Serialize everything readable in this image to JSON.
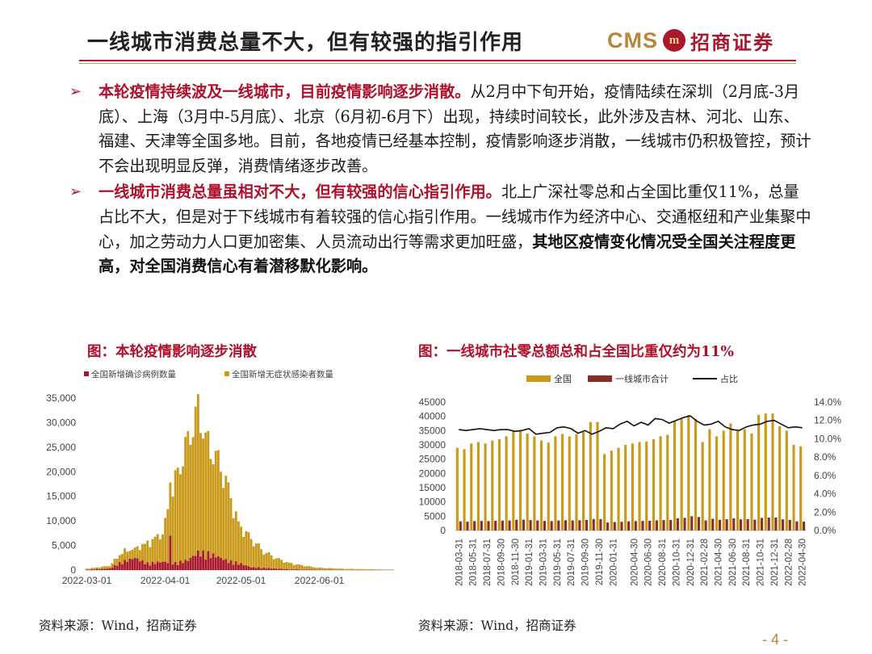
{
  "header": {
    "title": "一线城市消费总量不大，但有较强的指引作用",
    "logo_cms": "CMS",
    "logo_mark": "m",
    "logo_cn": "招商证券"
  },
  "bullets": [
    {
      "marker": "➢",
      "lead": "本轮疫情持续波及一线城市，目前疫情影响逐步消散。",
      "body": "从2月中下旬开始，疫情陆续在深圳（2月底-3月底）、上海（3月中-5月底）、北京（6月初-6月下）出现，持续时间较长，此外涉及吉林、河北、山东、福建、天津等全国多地。目前，各地疫情已经基本控制，疫情影响逐步消散，一线城市仍积极管控，预计不会出现明显反弹，消费情绪逐步改善。",
      "tail": ""
    },
    {
      "marker": "➢",
      "lead": "一线城市消费总量虽相对不大，但有较强的信心指引作用。",
      "body": "北上广深社零总和占全国比重仅11%，总量占比不大，但是对于下线城市有着较强的信心指引作用。一线城市作为经济中心、交通枢纽和产业集聚中心，加之劳动力人口更加密集、人员流动出行等需求更加旺盛，",
      "tail": "其地区疫情变化情况受全国关注程度更高，对全国消费信心有着潜移默化影响。"
    }
  ],
  "chart_left": {
    "caption": "图：本轮疫情影响逐步消散",
    "source": "资料来源：Wind，招商证券"
  },
  "chart_right": {
    "caption": "图：一线城市社零总额总和占全国比重仅约为11%",
    "source": "资料来源：Wind，招商证券"
  },
  "page_number": "- 4 -",
  "chart_data": [
    {
      "type": "bar",
      "title": "图：本轮疫情影响逐步消散",
      "stacked": true,
      "legend": [
        "全国新增确诊病例数量",
        "全国新增无症状感染者数量"
      ],
      "legend_position": "top-left",
      "colors": [
        "#a8192e",
        "#c99a1a"
      ],
      "ylim": [
        0,
        35000
      ],
      "yticks": [
        "0",
        "5,000",
        "10,000",
        "15,000",
        "20,000",
        "25,000",
        "30,000",
        "35,000"
      ],
      "xticks": [
        {
          "label": "2022-03-01",
          "index": 0
        },
        {
          "label": "2022-04-01",
          "index": 31
        },
        {
          "label": "2022-05-01",
          "index": 61
        },
        {
          "label": "2022-06-01",
          "index": 92
        }
      ],
      "n_days": 122,
      "key_points": [
        {
          "x": "2022-03-01",
          "asym": 150,
          "conf": 100
        },
        {
          "x": "2022-03-10",
          "asym": 500,
          "conf": 300
        },
        {
          "x": "2022-03-15",
          "asym": 2000,
          "conf": 1500
        },
        {
          "x": "2022-03-20",
          "asym": 1800,
          "conf": 2200
        },
        {
          "x": "2022-03-25",
          "asym": 4000,
          "conf": 1200
        },
        {
          "x": "2022-03-31",
          "asym": 5500,
          "conf": 1500
        },
        {
          "x": "2022-04-05",
          "asym": 16000,
          "conf": 1300
        },
        {
          "x": "2022-04-10",
          "asym": 23000,
          "conf": 1800
        },
        {
          "x": "2022-04-14",
          "asym": 27500,
          "conf": 3200
        },
        {
          "x": "2022-04-18",
          "asym": 21000,
          "conf": 3000
        },
        {
          "x": "2022-04-22",
          "asym": 18500,
          "conf": 2400
        },
        {
          "x": "2022-04-26",
          "asym": 14000,
          "conf": 1600
        },
        {
          "x": "2022-04-30",
          "asym": 7500,
          "conf": 1300
        },
        {
          "x": "2022-05-05",
          "asym": 5500,
          "conf": 500
        },
        {
          "x": "2022-05-10",
          "asym": 3200,
          "conf": 400
        },
        {
          "x": "2022-05-15",
          "asym": 2000,
          "conf": 250
        },
        {
          "x": "2022-05-20",
          "asym": 1200,
          "conf": 150
        },
        {
          "x": "2022-05-25",
          "asym": 800,
          "conf": 100
        },
        {
          "x": "2022-05-31",
          "asym": 400,
          "conf": 60
        },
        {
          "x": "2022-06-10",
          "asym": 200,
          "conf": 40
        },
        {
          "x": "2022-06-30",
          "asym": 60,
          "conf": 20
        }
      ]
    },
    {
      "type": "bar",
      "title": "图：一线城市社零总额总和占全国比重仅约为11%",
      "legend": [
        "全国",
        "一线城市合计",
        "占比"
      ],
      "legend_position": "top",
      "colors": [
        "#c99a1a",
        "#8a2d24",
        "#111111"
      ],
      "ylim": [
        0,
        45000
      ],
      "yticks": [
        "0",
        "5000",
        "10000",
        "15000",
        "20000",
        "25000",
        "30000",
        "35000",
        "40000",
        "45000"
      ],
      "y2lim": [
        0,
        14
      ],
      "y2ticks": [
        "0.0%",
        "2.0%",
        "4.0%",
        "6.0%",
        "8.0%",
        "10.0%",
        "12.0%",
        "14.0%"
      ],
      "x": [
        "2018-03-31",
        "2018-04-30",
        "2018-05-31",
        "2018-06-30",
        "2018-07-31",
        "2018-08-31",
        "2018-09-30",
        "2018-10-31",
        "2018-11-30",
        "2018-12-31",
        "2019-01-31",
        "2019-02-28",
        "2019-03-31",
        "2019-04-30",
        "2019-05-31",
        "2019-06-30",
        "2019-07-31",
        "2019-08-31",
        "2019-09-30",
        "2019-10-31",
        "2019-11-30",
        "2019-12-31",
        "2020-01-31",
        "2020-02-29",
        "2020-03-31",
        "2020-04-30",
        "2020-05-31",
        "2020-06-30",
        "2020-07-31",
        "2020-08-31",
        "2020-09-30",
        "2020-10-31",
        "2020-11-30",
        "2020-12-31",
        "2021-01-31",
        "2021-02-28",
        "2021-03-31",
        "2021-04-30",
        "2021-05-31",
        "2021-06-30",
        "2021-07-31",
        "2021-08-31",
        "2021-09-30",
        "2021-10-31",
        "2021-11-30",
        "2021-12-31",
        "2022-01-31",
        "2022-02-28",
        "2022-03-31",
        "2022-04-30"
      ],
      "xtick_labels": [
        "2018-03-31",
        "2018-05-31",
        "2018-07-31",
        "2018-09-30",
        "2018-11-30",
        "2019-01-31",
        "2019-03-31",
        "2019-05-31",
        "2019-07-31",
        "2019-09-30",
        "2019-11-30",
        "2020-01-31",
        "2020-04-30",
        "2020-06-30",
        "2020-08-31",
        "2020-10-31",
        "2020-12-31",
        "2021-02-28",
        "2021-04-30",
        "2021-06-30",
        "2021-08-31",
        "2021-10-31",
        "2021-12-31",
        "2022-02-28",
        "2022-04-30"
      ],
      "series": [
        {
          "name": "全国",
          "axis": "left",
          "values": [
            29000,
            28500,
            30500,
            31000,
            30500,
            31500,
            32000,
            33000,
            35000,
            35000,
            34000,
            33000,
            31500,
            30800,
            33000,
            33800,
            33000,
            33800,
            34500,
            38000,
            38000,
            26800,
            28000,
            29000,
            30000,
            30500,
            31000,
            31200,
            32000,
            33000,
            33500,
            38500,
            39500,
            40500,
            39000,
            31000,
            35500,
            33000,
            35000,
            37500,
            34800,
            35500,
            34000,
            40500,
            41000,
            41000,
            36500,
            35000,
            30000,
            29500
          ]
        },
        {
          "name": "一线城市合计",
          "axis": "left",
          "values": [
            3200,
            3100,
            3300,
            3350,
            3300,
            3400,
            3450,
            3500,
            3750,
            3800,
            3650,
            3500,
            3350,
            3300,
            3500,
            3600,
            3550,
            3600,
            3700,
            4000,
            4000,
            2800,
            2950,
            3050,
            3200,
            3300,
            3350,
            3400,
            3550,
            3650,
            3700,
            4250,
            4400,
            5000,
            4700,
            3550,
            4100,
            3750,
            3950,
            4250,
            3900,
            3950,
            3800,
            4400,
            4500,
            4550,
            3900,
            3700,
            3200,
            3100
          ]
        },
        {
          "name": "占比",
          "axis": "right",
          "values": [
            11.0,
            10.9,
            11.0,
            11.1,
            11.0,
            10.9,
            11.0,
            11.0,
            10.8,
            10.9,
            11.1,
            10.5,
            10.6,
            10.7,
            11.2,
            11.3,
            11.1,
            10.6,
            10.9,
            10.5,
            10.8,
            11.2,
            11.1,
            11.6,
            11.9,
            11.4,
            11.8,
            11.5,
            12.2,
            12.1,
            11.7,
            12.0,
            12.3,
            12.5,
            11.9,
            11.5,
            11.6,
            11.9,
            11.3,
            11.0,
            10.9,
            11.3,
            11.5,
            11.6,
            11.9,
            12.0,
            11.6,
            11.2,
            11.3,
            11.2
          ]
        }
      ]
    }
  ]
}
